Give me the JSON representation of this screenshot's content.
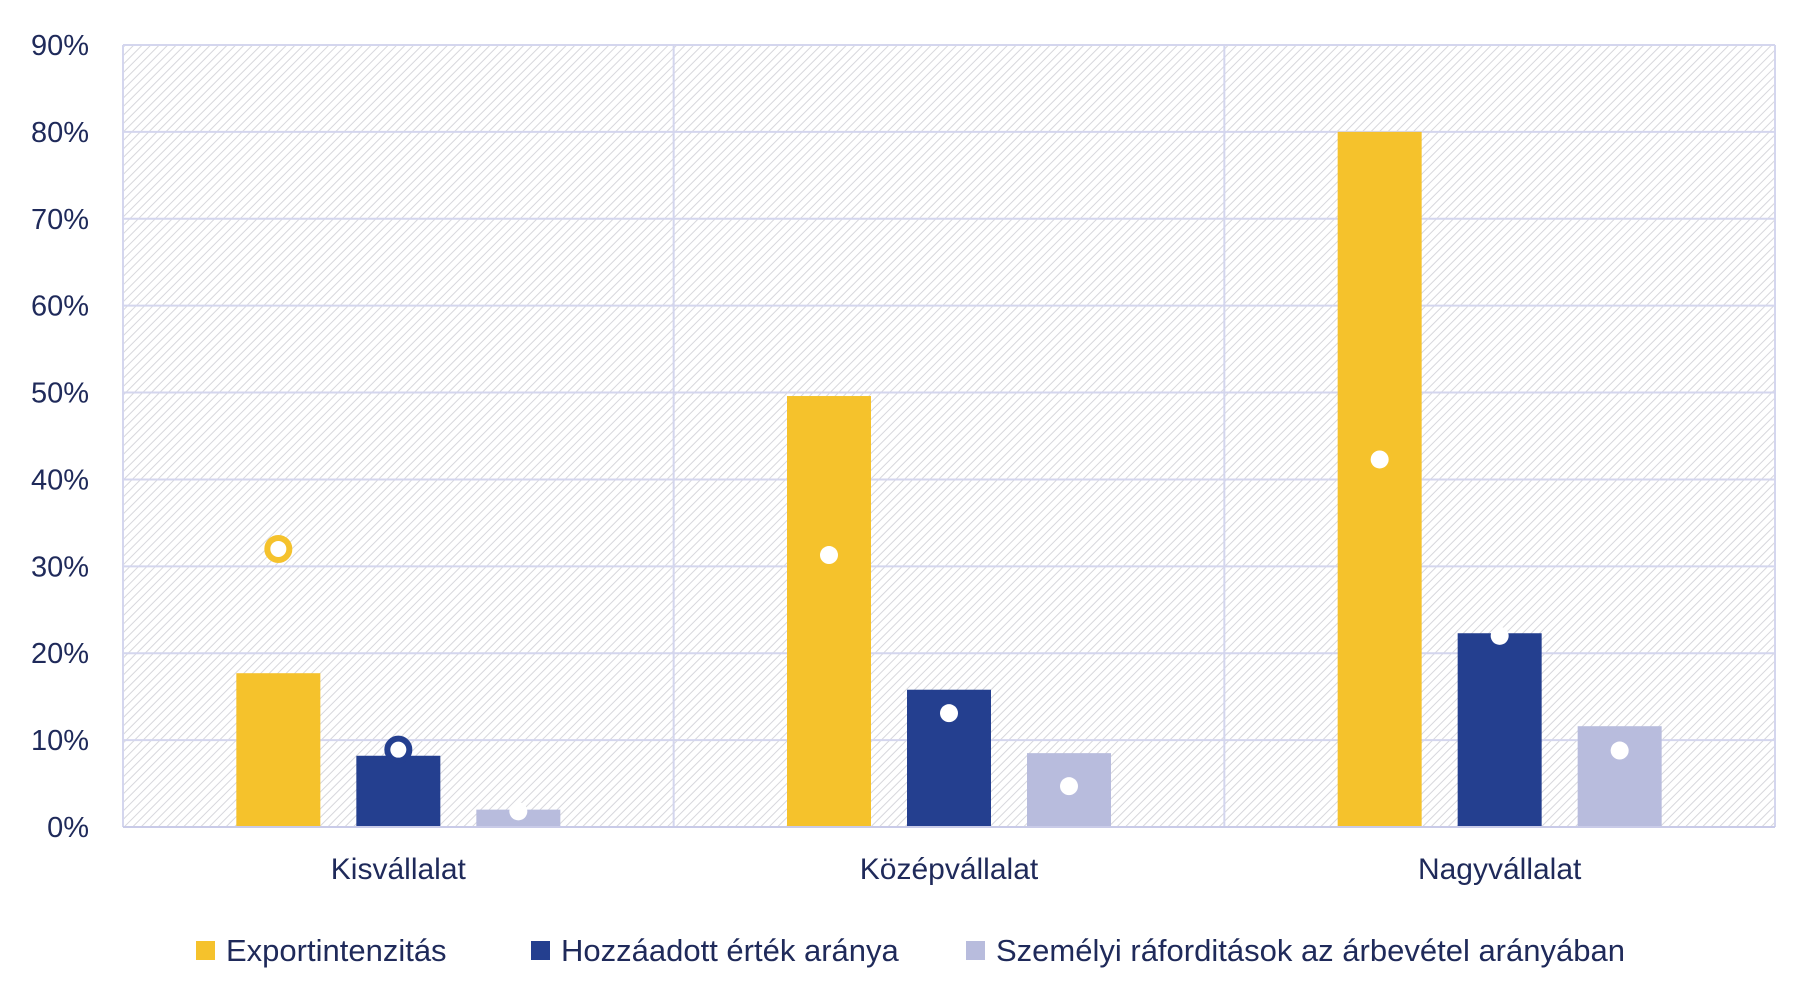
{
  "chart_data": {
    "type": "bar",
    "title": "",
    "xlabel": "",
    "ylabel": "",
    "ylim": [
      0,
      0.9
    ],
    "yticks": [
      0,
      0.1,
      0.2,
      0.3,
      0.4,
      0.5,
      0.6,
      0.7,
      0.8,
      0.9
    ],
    "ytick_labels": [
      "0%",
      "10%",
      "20%",
      "30%",
      "40%",
      "50%",
      "60%",
      "70%",
      "80%",
      "90%"
    ],
    "categories": [
      "Kisvállalat",
      "Középvállalat",
      "Nagyvállalat"
    ],
    "series": [
      {
        "name": "Exportintenzitás",
        "color": "#f5c22c",
        "values": [
          0.177,
          0.496,
          0.8
        ],
        "markers": [
          0.32,
          0.313,
          0.423
        ]
      },
      {
        "name": "Hozzáadott érték aránya",
        "color": "#243f8f",
        "values": [
          0.082,
          0.158,
          0.223
        ],
        "markers": [
          0.089,
          0.131,
          0.22
        ]
      },
      {
        "name": "Személyi ráforditások az árbevétel arányában",
        "color": "#b8bcdd",
        "values": [
          0.02,
          0.085,
          0.116
        ],
        "markers": [
          0.018,
          0.047,
          0.088
        ]
      }
    ],
    "grid": true,
    "legend": "bottom"
  }
}
